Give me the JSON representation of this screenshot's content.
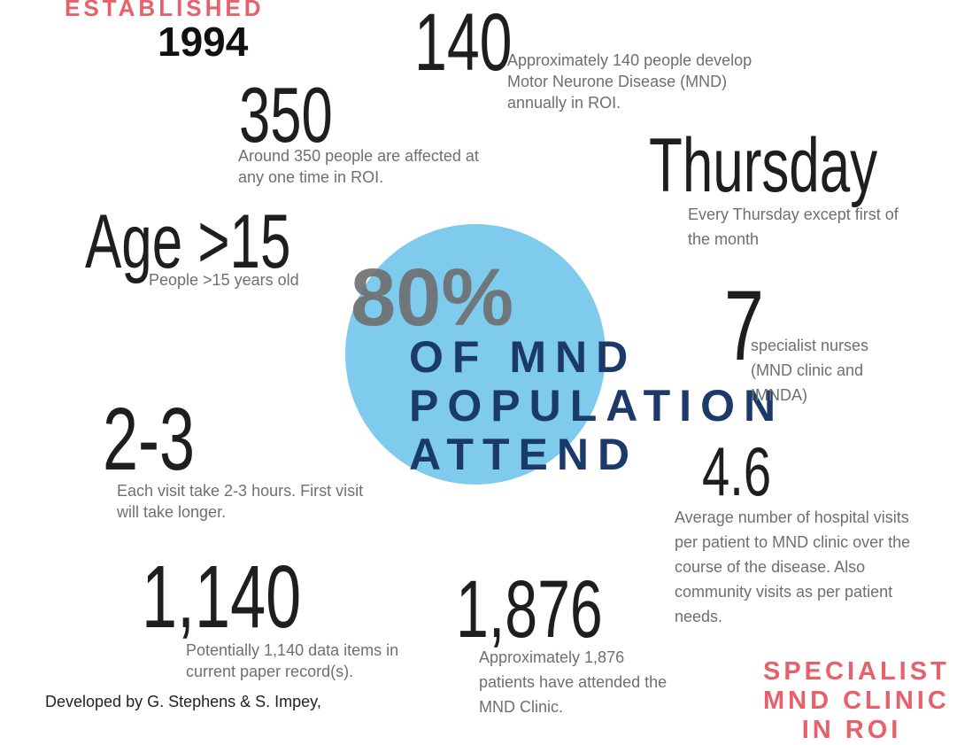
{
  "established": {
    "label": "ESTABLISHED",
    "year": "1994"
  },
  "facts": [
    {
      "number": "140",
      "text": "Approximately 140 people develop Motor Neurone Disease (MND) annually in ROI."
    },
    {
      "number": "350",
      "text": "Around 350 people are affected at any one time in ROI."
    },
    {
      "number": "Thursday",
      "text": "Every Thursday except first of the month"
    },
    {
      "number": "Age >15",
      "text": "People >15 years old"
    },
    {
      "number": "7",
      "text": "specialist nurses (MND clinic and IMNDA)"
    },
    {
      "number": "2-3",
      "text": "Each visit take 2-3 hours. First visit will take longer."
    },
    {
      "number": "4.6",
      "text": "Average number of hospital visits per patient to MND clinic over the course of the disease. Also community visits as per patient needs."
    },
    {
      "number": "1,140",
      "text": "Potentially 1,140 data items in current paper record(s)."
    },
    {
      "number": "1,876",
      "text": "Approximately 1,876 patients have attended the MND Clinic."
    }
  ],
  "highlight": {
    "percent": "80%",
    "caption": [
      "OF MND",
      "POPULATION",
      "ATTEND"
    ]
  },
  "credit": "Developed by G. Stephens & S. Impey,",
  "badge": [
    "SPECIALIST",
    "MND CLINIC",
    "IN ROI"
  ]
}
